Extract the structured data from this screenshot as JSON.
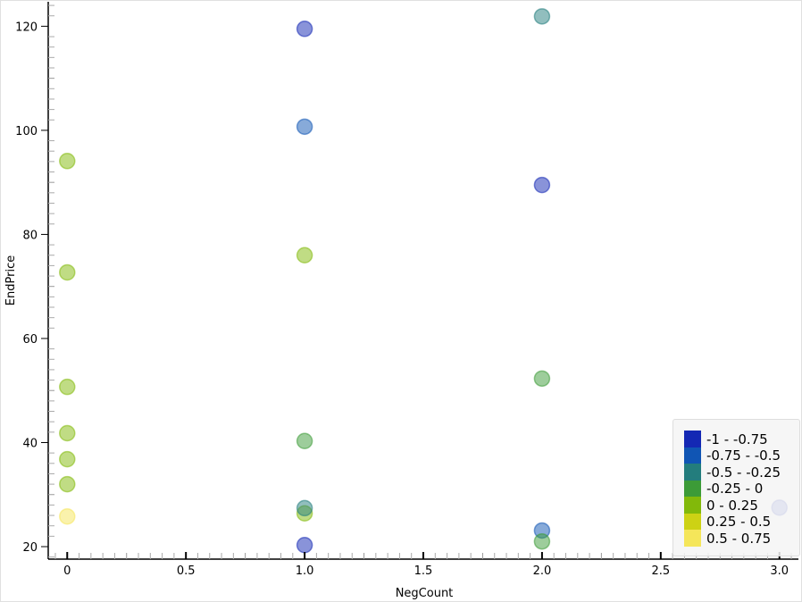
{
  "chart_data": {
    "type": "scatter",
    "xlabel": "NegCount",
    "ylabel": "EndPrice",
    "xlim": [
      -0.08,
      3.08
    ],
    "ylim": [
      17.6,
      124.7
    ],
    "x_ticks": [
      "0",
      "0.5",
      "1.0",
      "1.5",
      "2.0",
      "2.5",
      "3.0"
    ],
    "x_tick_values": [
      0,
      0.5,
      1,
      1.5,
      2,
      2.5,
      3
    ],
    "y_ticks": [
      "20",
      "40",
      "60",
      "80",
      "100",
      "120"
    ],
    "y_tick_values": [
      20,
      40,
      60,
      80,
      100,
      120
    ],
    "grid": false,
    "legend_position": "bottom-right",
    "legend": [
      {
        "label": "-1 - -0.75",
        "color": "#1428b4"
      },
      {
        "label": "-0.75 - -0.5",
        "color": "#1055b4"
      },
      {
        "label": "-0.5 - -0.25",
        "color": "#237d7d"
      },
      {
        "label": "-0.25 - 0",
        "color": "#3c9b37"
      },
      {
        "label": "0 - 0.25",
        "color": "#82b90a"
      },
      {
        "label": "0.25 - 0.5",
        "color": "#cdd214"
      },
      {
        "label": "0.5 - 0.75",
        "color": "#f5e65a"
      }
    ],
    "points": [
      {
        "x": 0,
        "y": 94.1,
        "class": 4
      },
      {
        "x": 0,
        "y": 72.7,
        "class": 4
      },
      {
        "x": 0,
        "y": 50.7,
        "class": 4
      },
      {
        "x": 0,
        "y": 41.8,
        "class": 4
      },
      {
        "x": 0,
        "y": 36.8,
        "class": 4
      },
      {
        "x": 0,
        "y": 32.0,
        "class": 4
      },
      {
        "x": 0,
        "y": 25.8,
        "class": 6
      },
      {
        "x": 1,
        "y": 119.5,
        "class": 0
      },
      {
        "x": 1,
        "y": 100.7,
        "class": 1
      },
      {
        "x": 1,
        "y": 76.0,
        "class": 4
      },
      {
        "x": 1,
        "y": 40.3,
        "class": 3
      },
      {
        "x": 1,
        "y": 26.4,
        "class": 4
      },
      {
        "x": 1,
        "y": 27.4,
        "class": 2
      },
      {
        "x": 1,
        "y": 20.3,
        "class": 0
      },
      {
        "x": 2,
        "y": 121.9,
        "class": 2
      },
      {
        "x": 2,
        "y": 89.5,
        "class": 0
      },
      {
        "x": 2,
        "y": 52.3,
        "class": 3
      },
      {
        "x": 2,
        "y": 23.1,
        "class": 1
      },
      {
        "x": 2,
        "y": 21.0,
        "class": 3
      },
      {
        "x": 3,
        "y": 27.5,
        "class": 0
      }
    ]
  }
}
